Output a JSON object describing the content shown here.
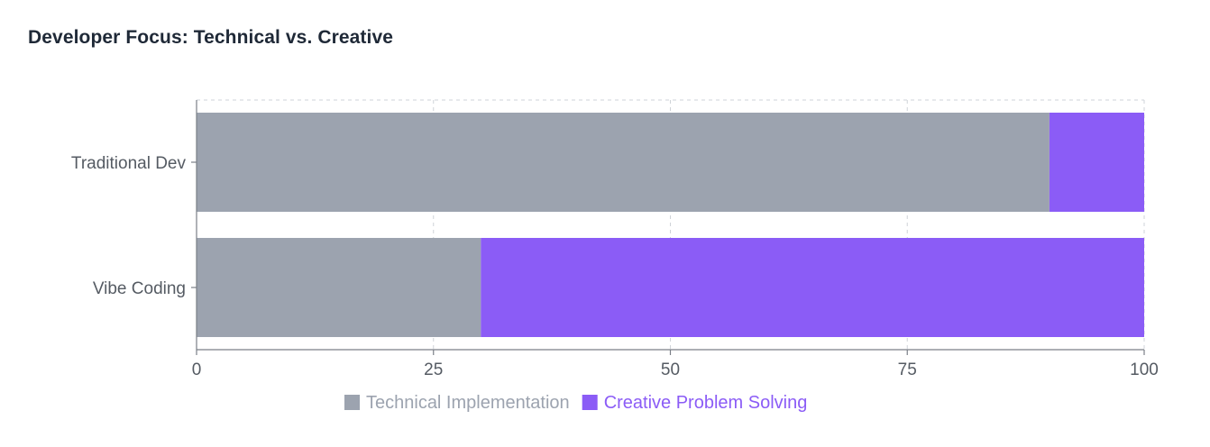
{
  "title": "Developer Focus: Technical vs. Creative",
  "chart_data": {
    "type": "bar",
    "orientation": "horizontal",
    "stacked": true,
    "title": "Developer Focus: Technical vs. Creative",
    "categories": [
      "Traditional Dev",
      "Vibe Coding"
    ],
    "series": [
      {
        "name": "Technical Implementation",
        "color": "#9ca3af",
        "values": [
          90,
          30
        ]
      },
      {
        "name": "Creative Problem Solving",
        "color": "#8b5cf6",
        "values": [
          10,
          70
        ]
      }
    ],
    "xlim": [
      0,
      100
    ],
    "xticks": [
      0,
      25,
      50,
      75,
      100
    ],
    "xtick_labels": [
      "0",
      "25",
      "50",
      "75",
      "100"
    ],
    "xlabel": "",
    "ylabel": "",
    "grid": true,
    "legend_position": "bottom-center"
  }
}
